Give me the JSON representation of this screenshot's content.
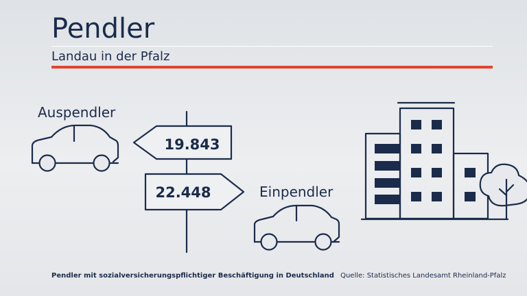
{
  "title": "Pendler",
  "subtitle": "Landau in der Pfalz",
  "auspendler": {
    "label": "Auspendler",
    "value": "19.843"
  },
  "einpendler": {
    "label": "Einpendler",
    "value": "22.448"
  },
  "footer": {
    "description": "Pendler mit sozialversicherungspflichtiger Beschäftigung in Deutschland",
    "source": "Quelle: Statistisches Landesamt Rheinland-Pfalz"
  },
  "colors": {
    "ink": "#1b2b4b",
    "accent": "#e4432f",
    "background": "#e6e8eb"
  }
}
